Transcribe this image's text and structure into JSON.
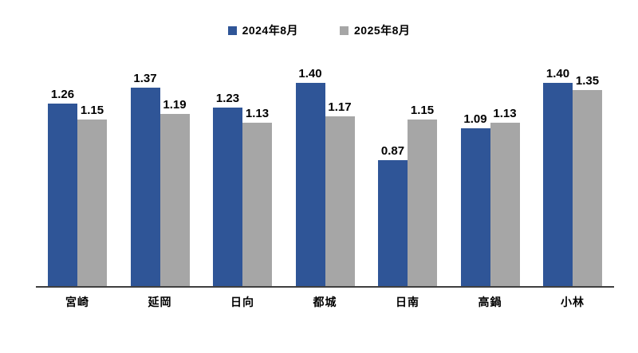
{
  "chart_data": {
    "type": "bar",
    "title": "",
    "xlabel": "",
    "ylabel": "",
    "categories": [
      "宮崎",
      "延岡",
      "日向",
      "都城",
      "日南",
      "高鍋",
      "小林"
    ],
    "series": [
      {
        "name": "2024年8月",
        "color": "#2F5597",
        "values": [
          1.26,
          1.37,
          1.23,
          1.4,
          0.87,
          1.09,
          1.4
        ]
      },
      {
        "name": "2025年8月",
        "color": "#A6A6A6",
        "values": [
          1.15,
          1.19,
          1.13,
          1.17,
          1.15,
          1.13,
          1.35
        ]
      }
    ],
    "ylim": [
      0,
      1.5
    ],
    "value_labels": true,
    "value_label_decimals": 2,
    "grid": false,
    "legend_position": "top-center",
    "axis_line_color": "#3f3f3f",
    "background_color": "#ffffff",
    "text_color": "#000000"
  }
}
